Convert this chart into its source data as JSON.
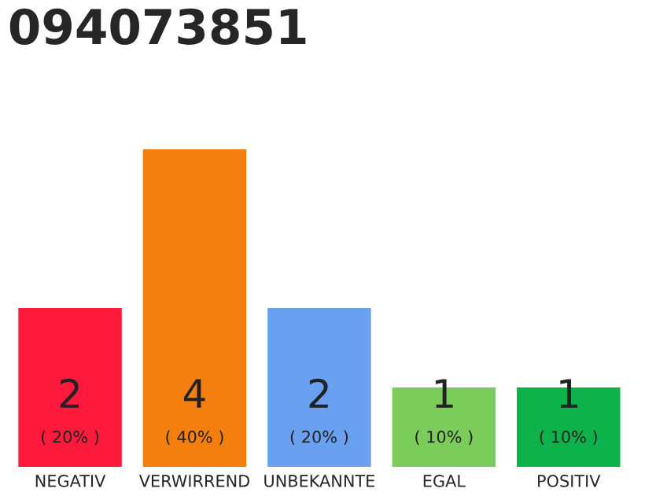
{
  "chart_data": {
    "type": "bar",
    "title": "094073851",
    "categories": [
      "NEGATIV",
      "VERWIRREND",
      "UNBEKANNTE",
      "EGAL",
      "POSITIV"
    ],
    "values": [
      2,
      4,
      2,
      1,
      1
    ],
    "colors": [
      "#ff1a3c",
      "#f47f0e",
      "#6aa0f0",
      "#7ccc5c",
      "#0db34a"
    ],
    "value_labels": [
      "2",
      "4",
      "2",
      "1",
      "1"
    ],
    "annotations": [
      "( 20% )",
      "( 40% )",
      "( 20% )",
      "( 10% )",
      "( 10% )"
    ],
    "tick_labels": "x",
    "grid": false,
    "legend": false
  }
}
